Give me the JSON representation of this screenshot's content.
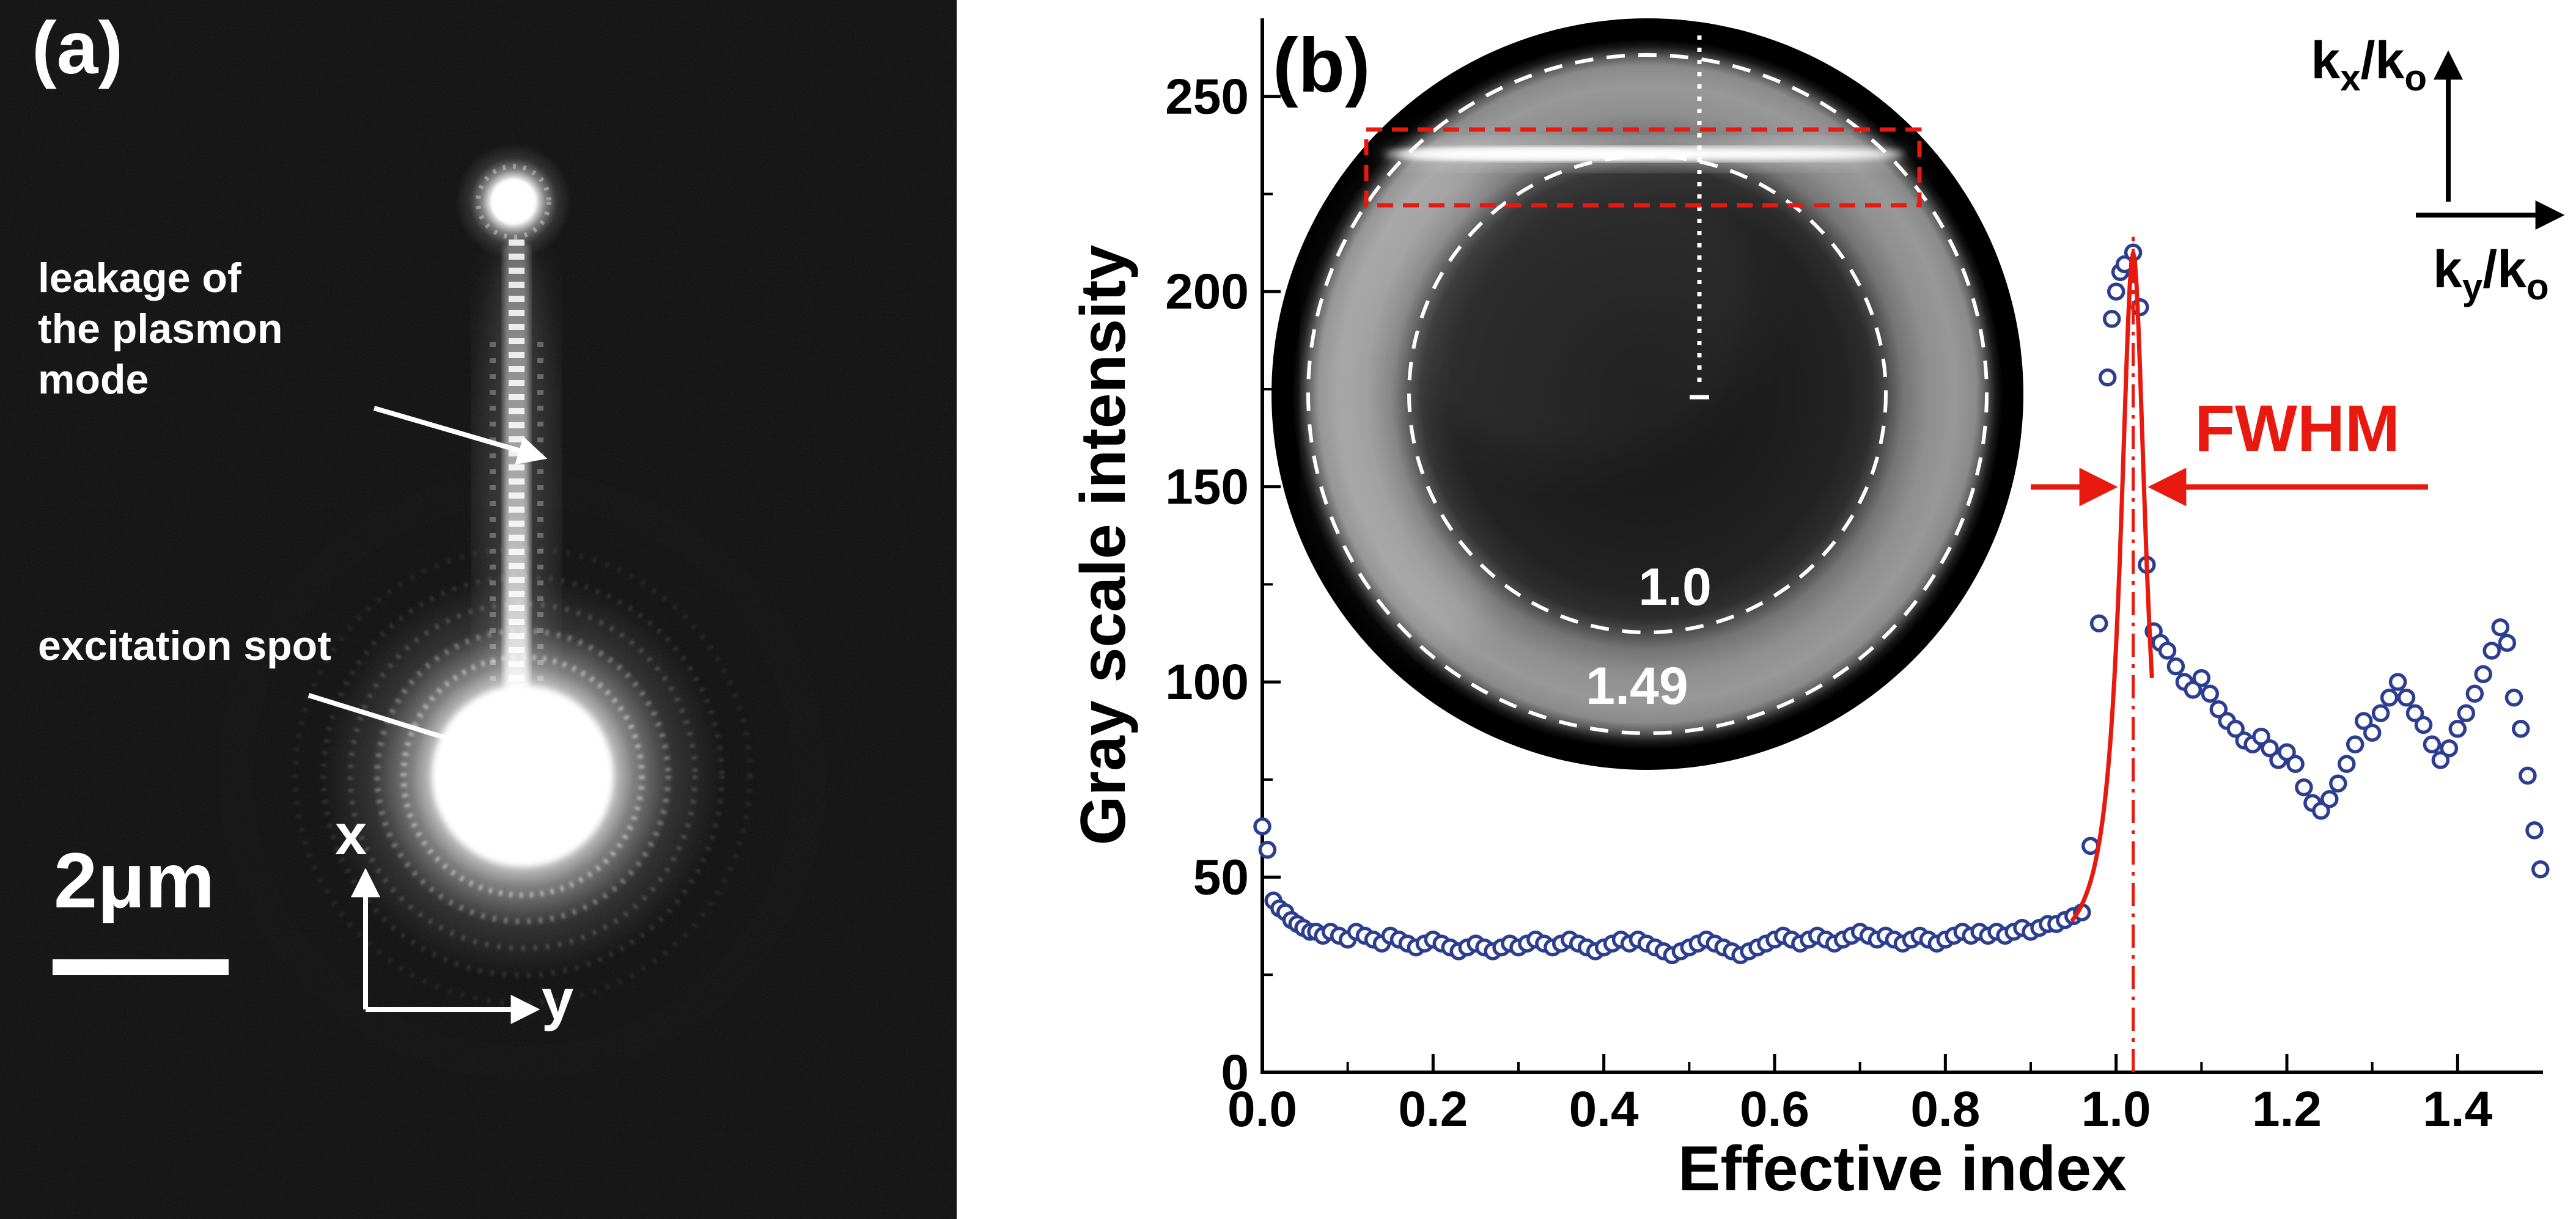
{
  "figure": {
    "panel_a": {
      "label": "(a)",
      "leakage_lines": [
        "leakage of",
        "the plasmon",
        "mode"
      ],
      "excitation_label": "excitation spot",
      "scalebar_label": "2μm",
      "axis_x_label": "x",
      "axis_y_label": "y"
    },
    "panel_b": {
      "label": "(b)",
      "fwhm_label": "FWHM",
      "inset": {
        "inner_circle_label": "1.0",
        "outer_circle_label": "1.49",
        "kx": {
          "b1": "k",
          "s1": "x",
          "b2": "/k",
          "s2": "o"
        },
        "ky": {
          "b1": "k",
          "s1": "y",
          "b2": "/k",
          "s2": "o"
        }
      }
    }
  },
  "colors": {
    "accent_red": "#e8190f",
    "point_blue": "#2b3e8f",
    "axis_black": "#000000",
    "inset_white": "#ffffff"
  },
  "chart_data": {
    "type": "scatter",
    "title": "",
    "xlabel": "Effective index",
    "ylabel": "Gray scale intensity",
    "xlim": [
      0,
      1.5
    ],
    "ylim": [
      0,
      270
    ],
    "x_ticks": [
      0.0,
      0.2,
      0.4,
      0.6,
      0.8,
      1.0,
      1.2,
      1.4
    ],
    "x_tick_labels": [
      "0.0",
      "0.2",
      "0.4",
      "0.6",
      "0.8",
      "1.0",
      "1.2",
      "1.4"
    ],
    "y_ticks": [
      0,
      50,
      100,
      150,
      200,
      250
    ],
    "grid": false,
    "legend": "none",
    "series": [
      {
        "name": "gray-scale-intensity",
        "marker": "open-circle",
        "color": "#2b3e8f",
        "points": [
          [
            0.0,
            63
          ],
          [
            0.006,
            57
          ],
          [
            0.013,
            44
          ],
          [
            0.02,
            42
          ],
          [
            0.027,
            41
          ],
          [
            0.034,
            39
          ],
          [
            0.041,
            38
          ],
          [
            0.048,
            37
          ],
          [
            0.056,
            36
          ],
          [
            0.063,
            36
          ],
          [
            0.071,
            35
          ],
          [
            0.08,
            36
          ],
          [
            0.09,
            35
          ],
          [
            0.1,
            34
          ],
          [
            0.11,
            36
          ],
          [
            0.12,
            35
          ],
          [
            0.13,
            34
          ],
          [
            0.14,
            33
          ],
          [
            0.15,
            35
          ],
          [
            0.16,
            34
          ],
          [
            0.17,
            33
          ],
          [
            0.18,
            32
          ],
          [
            0.19,
            33
          ],
          [
            0.2,
            34
          ],
          [
            0.21,
            33
          ],
          [
            0.22,
            32
          ],
          [
            0.23,
            31
          ],
          [
            0.24,
            32
          ],
          [
            0.25,
            33
          ],
          [
            0.26,
            32
          ],
          [
            0.27,
            31
          ],
          [
            0.28,
            32
          ],
          [
            0.29,
            33
          ],
          [
            0.3,
            32
          ],
          [
            0.31,
            33
          ],
          [
            0.32,
            34
          ],
          [
            0.33,
            33
          ],
          [
            0.34,
            32
          ],
          [
            0.35,
            33
          ],
          [
            0.36,
            34
          ],
          [
            0.37,
            33
          ],
          [
            0.38,
            32
          ],
          [
            0.39,
            31
          ],
          [
            0.4,
            32
          ],
          [
            0.41,
            33
          ],
          [
            0.42,
            34
          ],
          [
            0.43,
            33
          ],
          [
            0.44,
            34
          ],
          [
            0.45,
            33
          ],
          [
            0.46,
            32
          ],
          [
            0.47,
            31
          ],
          [
            0.48,
            30
          ],
          [
            0.49,
            31
          ],
          [
            0.5,
            32
          ],
          [
            0.51,
            33
          ],
          [
            0.52,
            34
          ],
          [
            0.53,
            33
          ],
          [
            0.54,
            32
          ],
          [
            0.55,
            31
          ],
          [
            0.56,
            30
          ],
          [
            0.57,
            31
          ],
          [
            0.58,
            32
          ],
          [
            0.59,
            33
          ],
          [
            0.6,
            34
          ],
          [
            0.61,
            35
          ],
          [
            0.62,
            34
          ],
          [
            0.63,
            33
          ],
          [
            0.64,
            34
          ],
          [
            0.65,
            35
          ],
          [
            0.66,
            34
          ],
          [
            0.67,
            33
          ],
          [
            0.68,
            34
          ],
          [
            0.69,
            35
          ],
          [
            0.7,
            36
          ],
          [
            0.71,
            35
          ],
          [
            0.72,
            34
          ],
          [
            0.73,
            35
          ],
          [
            0.74,
            34
          ],
          [
            0.75,
            33
          ],
          [
            0.76,
            34
          ],
          [
            0.77,
            35
          ],
          [
            0.78,
            34
          ],
          [
            0.79,
            33
          ],
          [
            0.8,
            34
          ],
          [
            0.81,
            35
          ],
          [
            0.82,
            36
          ],
          [
            0.83,
            35
          ],
          [
            0.84,
            36
          ],
          [
            0.85,
            35
          ],
          [
            0.86,
            36
          ],
          [
            0.87,
            35
          ],
          [
            0.88,
            36
          ],
          [
            0.89,
            37
          ],
          [
            0.9,
            36
          ],
          [
            0.91,
            37
          ],
          [
            0.92,
            38
          ],
          [
            0.93,
            38
          ],
          [
            0.94,
            39
          ],
          [
            0.95,
            40
          ],
          [
            0.96,
            41
          ],
          [
            0.97,
            58
          ],
          [
            0.98,
            115
          ],
          [
            0.99,
            178
          ],
          [
            0.995,
            193
          ],
          [
            1.0,
            200
          ],
          [
            1.005,
            205
          ],
          [
            1.01,
            207
          ],
          [
            1.02,
            210
          ],
          [
            1.028,
            196
          ],
          [
            1.036,
            130
          ],
          [
            1.044,
            113
          ],
          [
            1.052,
            110
          ],
          [
            1.06,
            108
          ],
          [
            1.07,
            104
          ],
          [
            1.08,
            100
          ],
          [
            1.09,
            98
          ],
          [
            1.1,
            101
          ],
          [
            1.11,
            97
          ],
          [
            1.12,
            93
          ],
          [
            1.13,
            90
          ],
          [
            1.14,
            88
          ],
          [
            1.15,
            85
          ],
          [
            1.16,
            84
          ],
          [
            1.17,
            86
          ],
          [
            1.18,
            83
          ],
          [
            1.19,
            80
          ],
          [
            1.2,
            82
          ],
          [
            1.21,
            79
          ],
          [
            1.22,
            73
          ],
          [
            1.23,
            69
          ],
          [
            1.24,
            67
          ],
          [
            1.25,
            70
          ],
          [
            1.26,
            74
          ],
          [
            1.27,
            79
          ],
          [
            1.28,
            84
          ],
          [
            1.29,
            90
          ],
          [
            1.3,
            87
          ],
          [
            1.31,
            92
          ],
          [
            1.32,
            96
          ],
          [
            1.33,
            100
          ],
          [
            1.34,
            96
          ],
          [
            1.35,
            92
          ],
          [
            1.36,
            89
          ],
          [
            1.37,
            84
          ],
          [
            1.38,
            80
          ],
          [
            1.39,
            83
          ],
          [
            1.4,
            88
          ],
          [
            1.41,
            92
          ],
          [
            1.42,
            97
          ],
          [
            1.43,
            102
          ],
          [
            1.44,
            108
          ],
          [
            1.45,
            114
          ],
          [
            1.458,
            110
          ],
          [
            1.466,
            96
          ],
          [
            1.474,
            88
          ],
          [
            1.482,
            76
          ],
          [
            1.49,
            62
          ],
          [
            1.497,
            52
          ]
        ]
      }
    ],
    "fit": {
      "name": "lorentzian-fit",
      "color": "#e8190f",
      "center": 1.02,
      "fwhm": 0.036,
      "amplitude": 182,
      "baseline": 28,
      "x_range": [
        0.948,
        1.042
      ]
    },
    "peak_marker_x": 1.02,
    "annotations": {
      "fwhm_label": "FWHM"
    }
  }
}
